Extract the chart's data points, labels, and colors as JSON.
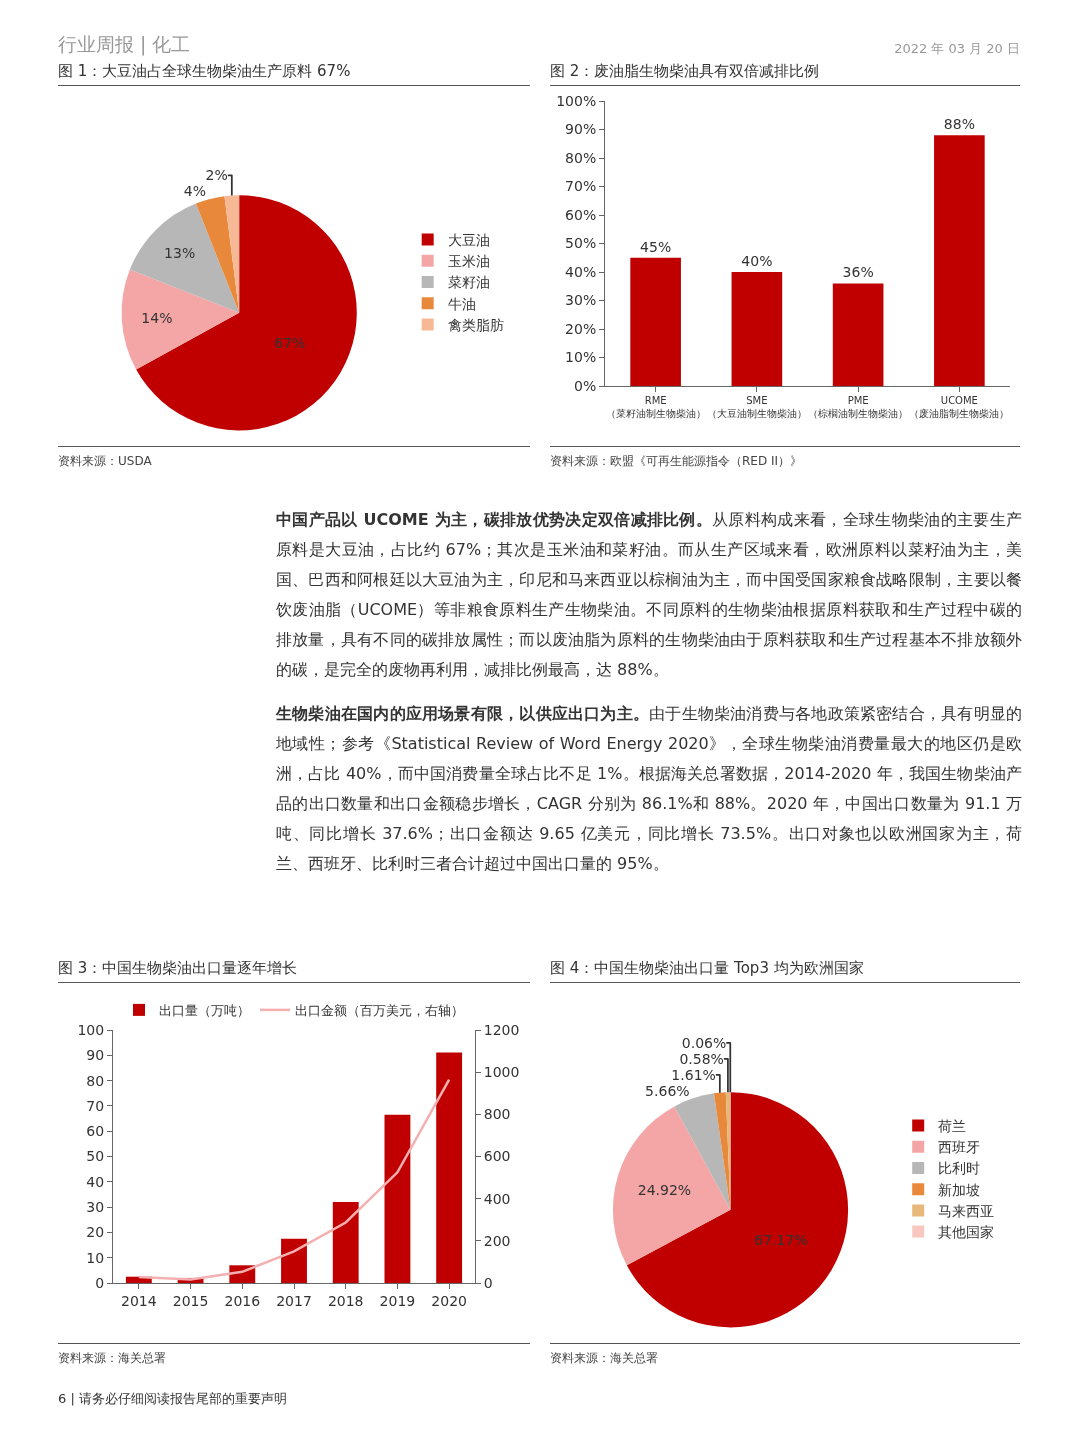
{
  "chart_data": [
    {
      "type": "other",
      "annotations": [
        "行业周报 | 化工",
        "2022 年 03 月 20 日"
      ]
    },
    {
      "type": "pie",
      "title": "图 1：大豆油占全球生物柴油生产原料 67%",
      "categories": [
        "大豆油",
        "玉米油",
        "菜籽油",
        "牛油",
        "禽类脂肪"
      ],
      "values": [
        67,
        14,
        13,
        4,
        2
      ],
      "value_labels": [
        "67%",
        "14%",
        "13%",
        "4%",
        "2%"
      ],
      "colors": [
        "#c00000",
        "#f4a6a6",
        "#b7b7b7",
        "#e8883a",
        "#f7b896"
      ],
      "legend": "right",
      "annotations": [
        "资料来源：USDA"
      ]
    },
    {
      "type": "bar",
      "title": "图 2：废油脂生物柴油具有双倍减排比例",
      "categories": [
        "RME\n（菜籽油制生物柴油）",
        "SME\n（大豆油制生物柴油）",
        "PME\n（棕榈油制生物柴油）",
        "UCOME\n（废油脂制生物柴油）"
      ],
      "values": [
        45,
        40,
        36,
        88
      ],
      "value_labels": [
        "45%",
        "40%",
        "36%",
        "88%"
      ],
      "color": "#c00000",
      "ylim": [
        0,
        100
      ],
      "yticks": [
        {
          "value": 0,
          "label": "0%"
        },
        {
          "value": 10,
          "label": "10%"
        },
        {
          "value": 20,
          "label": "20%"
        },
        {
          "value": 30,
          "label": "30%"
        },
        {
          "value": 40,
          "label": "40%"
        },
        {
          "value": 50,
          "label": "50%"
        },
        {
          "value": 60,
          "label": "60%"
        },
        {
          "value": 70,
          "label": "70%"
        },
        {
          "value": 80,
          "label": "80%"
        },
        {
          "value": 90,
          "label": "90%"
        },
        {
          "value": 100,
          "label": "100%"
        }
      ],
      "grid": false,
      "annotations": [
        "资料来源：欧盟《可再生能源指令（RED II）》"
      ]
    },
    {
      "type": "other",
      "annotations": [
        "中国产品以 UCOME 为主，碳排放优势决定双倍减排比例。",
        "从原料构成来看，全球生物柴油的主要生产原料是大豆油，占比约 67%；其次是玉米油和菜籽油。而从生产区域来看，欧洲原料以菜籽油为主，美国、巴西和阿根廷以大豆油为主，印尼和马来西亚以棕榈油为主，而中国受国家粮食战略限制，主要以餐饮废油脂（UCOME）等非粮食原料生产生物柴油。不同原料的生物柴油根据原料获取和生产过程中碳的排放量，具有不同的碳排放属性；而以废油脂为原料的生物柴油由于原料获取和生产过程基本不排放额外的碳，是完全的废物再利用，减排比例最高，达 88%。",
        "生物柴油在国内的应用场景有限，以供应出口为主。",
        "由于生物柴油消费与各地政策紧密结合，具有明显的地域性；参考《Statistical Review of Word Energy 2020》，全球生物柴油消费量最大的地区仍是欧洲，占比 40%，而中国消费量全球占比不足 1%。根据海关总署数据，2014-2020 年，我国生物柴油产品的出口数量和出口金额稳步增长，CAGR 分别为 86.1%和 88%。2020 年，中国出口数量为 91.1 万吨、同比增长 37.6%；出口金额达 9.65 亿美元，同比增长 73.5%。出口对象也以欧洲国家为主，荷兰、西班牙、比利时三者合计超过中国出口量的 95%。"
      ]
    },
    {
      "type": "bar",
      "title": "图 3：中国生物柴油出口量逐年增长",
      "categories": [
        "2014",
        "2015",
        "2016",
        "2017",
        "2018",
        "2019",
        "2020"
      ],
      "series": [
        {
          "name": "出口量（万吨）",
          "color": "#c00000",
          "values": [
            2.5,
            2,
            7,
            17.5,
            32,
            66.5,
            91.1
          ]
        },
        {
          "name": "出口金额（百万美元，右轴）",
          "type": "line",
          "axis": "y2",
          "color": "#f4b0b0",
          "values": [
            28,
            17,
            53,
            150,
            287,
            525,
            965
          ]
        }
      ],
      "ylim": [
        0,
        100
      ],
      "yticks": [
        0,
        10,
        20,
        30,
        40,
        50,
        60,
        70,
        80,
        90,
        100
      ],
      "y2lim": [
        0,
        1200
      ],
      "y2ticks": [
        0,
        200,
        400,
        600,
        800,
        1000,
        1200
      ],
      "grid": false,
      "legend": "top",
      "marker": "none",
      "line_style": "solid",
      "annotations": [
        "资料来源：海关总署"
      ]
    },
    {
      "type": "pie",
      "title": "图 4：中国生物柴油出口量 Top3 均为欧洲国家",
      "categories": [
        "荷兰",
        "西班牙",
        "比利时",
        "新加坡",
        "马来西亚",
        "其他国家"
      ],
      "values": [
        67.17,
        24.92,
        5.66,
        1.61,
        0.58,
        0.06
      ],
      "value_labels": [
        "67.17%",
        "24.92%",
        "5.66%",
        "1.61%",
        "0.58%",
        "0.06%"
      ],
      "colors": [
        "#c00000",
        "#f4a6a6",
        "#b7b7b7",
        "#e8883a",
        "#e6b87a",
        "#f8c8c0"
      ],
      "legend": "right",
      "annotations": [
        "资料来源：海关总署"
      ]
    },
    {
      "type": "other",
      "annotations": [
        "6 | 请务必仔细阅读报告尾部的重要声明"
      ]
    }
  ]
}
